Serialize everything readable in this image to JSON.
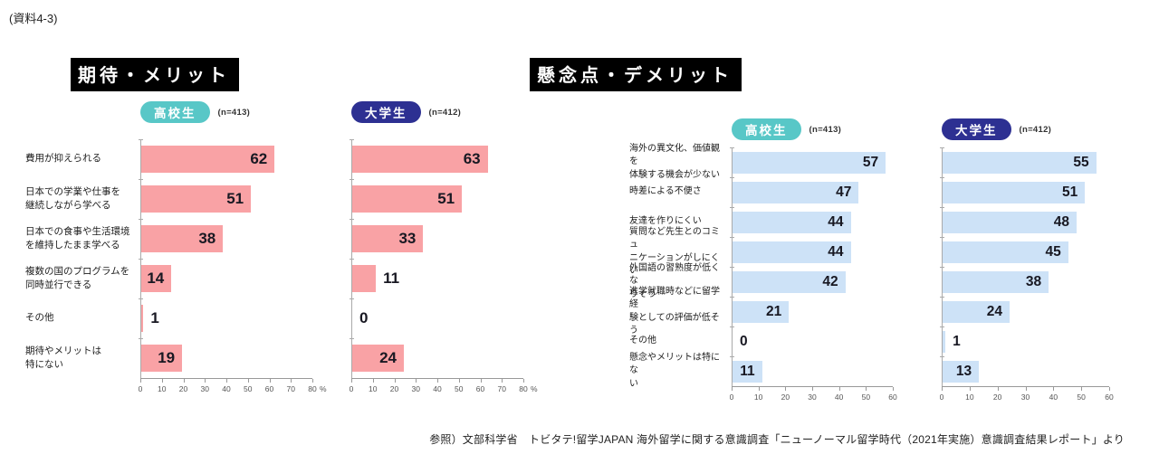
{
  "doc_label": "(資料4-3)",
  "sections": [
    {
      "title": "期待・メリット"
    },
    {
      "title": "懸念点・デメリット"
    }
  ],
  "citation": "参照）文部科学省　トビタテ!留学JAPAN 海外留学に関する意識調査「ニューノーマル留学時代（2021年実施）意識調査結果レポート」より",
  "colors": {
    "merit_bar": "#F9A2A5",
    "concern_bar": "#CDE2F7",
    "highschool_badge": "#58C7C7",
    "university_badge": "#2D3092",
    "title_bg": "#000000",
    "title_fg": "#FFFFFF",
    "value_text": "#181822",
    "axis": "#999999"
  },
  "chart_data": [
    {
      "id": "merit-highschool",
      "type": "bar",
      "orientation": "horizontal",
      "section": "期待・メリット",
      "group_label": "高校生",
      "n_label": "(n=413)",
      "badge_color_key": "highschool_badge",
      "bar_color_key": "merit_bar",
      "categories": [
        "費用が抑えられる",
        "日本での学業や仕事を\n継続しながら学べる",
        "日本での食事や生活環境\nを維持したまま学べる",
        "複数の国のプログラムを\n同時並行できる",
        "その他",
        "期待やメリットは\n特にない"
      ],
      "values": [
        62,
        51,
        38,
        14,
        1,
        19
      ],
      "xlim": [
        0,
        80
      ],
      "ticks": [
        0,
        10,
        20,
        30,
        40,
        50,
        60,
        70,
        80
      ],
      "tick_suffix": "%",
      "grid": false,
      "legend": "none"
    },
    {
      "id": "merit-university",
      "type": "bar",
      "orientation": "horizontal",
      "section": "期待・メリット",
      "group_label": "大学生",
      "n_label": "(n=412)",
      "badge_color_key": "university_badge",
      "bar_color_key": "merit_bar",
      "categories": [
        "費用が抑えられる",
        "日本での学業や仕事を継続しながら学べる",
        "日本での食事や生活環境を維持したまま学べる",
        "複数の国のプログラムを同時並行できる",
        "その他",
        "期待やメリットは特にない"
      ],
      "values": [
        63,
        51,
        33,
        11,
        0,
        24
      ],
      "xlim": [
        0,
        80
      ],
      "ticks": [
        0,
        10,
        20,
        30,
        40,
        50,
        60,
        70,
        80
      ],
      "tick_suffix": "%",
      "grid": false,
      "legend": "none",
      "labels_hidden": true
    },
    {
      "id": "concern-highschool",
      "type": "bar",
      "orientation": "horizontal",
      "section": "懸念点・デメリット",
      "group_label": "高校生",
      "n_label": "(n=413)",
      "badge_color_key": "highschool_badge",
      "bar_color_key": "concern_bar",
      "categories": [
        "海外の異文化、価値観を\n体験する機会が少ない",
        "時差による不便さ",
        "友達を作りにくい",
        "質問など先生とのコミュ\nニケーションがしにくい",
        "外国語の習熟度が低くな\nりそう",
        "進学就職時などに留学経\n験としての評価が低そう",
        "その他",
        "懸念やメリットは特にな\nい"
      ],
      "values": [
        57,
        47,
        44,
        44,
        42,
        21,
        0,
        11
      ],
      "xlim": [
        0,
        60
      ],
      "ticks": [
        0,
        10,
        20,
        30,
        40,
        50,
        60
      ],
      "tick_suffix": "",
      "grid": false,
      "legend": "none"
    },
    {
      "id": "concern-university",
      "type": "bar",
      "orientation": "horizontal",
      "section": "懸念点・デメリット",
      "group_label": "大学生",
      "n_label": "(n=412)",
      "badge_color_key": "university_badge",
      "bar_color_key": "concern_bar",
      "categories": [
        "海外の異文化、価値観を体験する機会が少ない",
        "時差による不便さ",
        "友達を作りにくい",
        "質問など先生とのコミュニケーションがしにくい",
        "外国語の習熟度が低くなりそう",
        "進学就職時などに留学経験としての評価が低そう",
        "その他",
        "懸念やメリットは特にない"
      ],
      "values": [
        55,
        51,
        48,
        45,
        38,
        24,
        1,
        13
      ],
      "xlim": [
        0,
        60
      ],
      "ticks": [
        0,
        10,
        20,
        30,
        40,
        50,
        60
      ],
      "tick_suffix": "",
      "grid": false,
      "legend": "none",
      "labels_hidden": true
    }
  ]
}
